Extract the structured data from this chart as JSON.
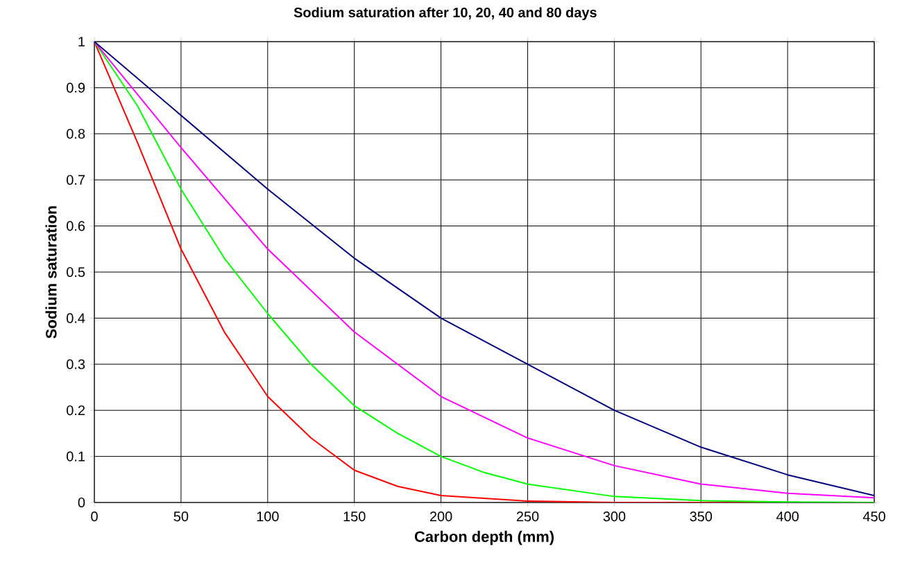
{
  "chart_data": {
    "type": "line",
    "title": "Sodium saturation after 10, 20, 40 and 80 days",
    "xlabel": "Carbon depth (mm)",
    "ylabel": "Sodium saturation",
    "xlim": [
      0,
      450
    ],
    "ylim": [
      0,
      1
    ],
    "xticks": [
      0,
      50,
      100,
      150,
      200,
      250,
      300,
      350,
      400,
      450
    ],
    "yticks": [
      0,
      0.1,
      0.2,
      0.3,
      0.4,
      0.5,
      0.6,
      0.7,
      0.8,
      0.9,
      1
    ],
    "grid": true,
    "marker": "none",
    "line_style": "solid",
    "series": [
      {
        "color": "#ff0000",
        "x": [
          0,
          25,
          50,
          75,
          100,
          125,
          150,
          175,
          200,
          250,
          300,
          450
        ],
        "values": [
          1,
          0.78,
          0.55,
          0.37,
          0.23,
          0.14,
          0.07,
          0.035,
          0.015,
          0.003,
          0,
          0
        ]
      },
      {
        "color": "#00ff00",
        "x": [
          0,
          25,
          50,
          75,
          100,
          125,
          150,
          175,
          200,
          225,
          250,
          300,
          350,
          400,
          450
        ],
        "values": [
          1,
          0.86,
          0.68,
          0.53,
          0.41,
          0.3,
          0.21,
          0.15,
          0.1,
          0.065,
          0.04,
          0.013,
          0.004,
          0.001,
          0
        ]
      },
      {
        "color": "#ff00ff",
        "x": [
          0,
          50,
          100,
          150,
          200,
          250,
          300,
          350,
          400,
          450
        ],
        "values": [
          1,
          0.77,
          0.55,
          0.37,
          0.23,
          0.14,
          0.08,
          0.04,
          0.02,
          0.01
        ]
      },
      {
        "color": "#000080",
        "x": [
          0,
          50,
          100,
          150,
          200,
          250,
          300,
          350,
          400,
          450
        ],
        "values": [
          1,
          0.84,
          0.68,
          0.53,
          0.4,
          0.3,
          0.2,
          0.12,
          0.06,
          0.015
        ]
      }
    ]
  }
}
